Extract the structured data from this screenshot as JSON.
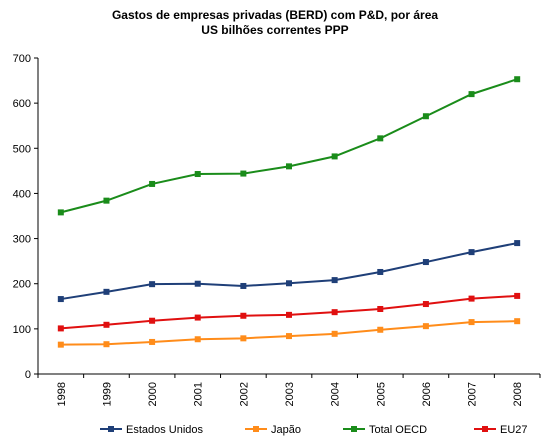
{
  "chart_data": {
    "type": "line",
    "title": "Gastos de empresas privadas (BERD) com P&D, por área",
    "subtitle": "US bilhões correntes PPP",
    "categories": [
      "1998",
      "1999",
      "2000",
      "2001",
      "2002",
      "2003",
      "2004",
      "2005",
      "2006",
      "2007",
      "2008"
    ],
    "ylim": [
      0,
      700
    ],
    "yticks": [
      0,
      100,
      200,
      300,
      400,
      500,
      600,
      700
    ],
    "grid": false,
    "legend_position": "bottom",
    "series": [
      {
        "name": "Estados Unidos",
        "color": "#1f3f78",
        "values": [
          166,
          182,
          199,
          200,
          195,
          201,
          208,
          226,
          248,
          270,
          290
        ]
      },
      {
        "name": "Japão",
        "color": "#ff8c1a",
        "values": [
          65,
          66,
          71,
          77,
          79,
          84,
          89,
          98,
          106,
          115,
          117
        ]
      },
      {
        "name": "Total OECD",
        "color": "#1a8c1a",
        "values": [
          358,
          384,
          421,
          443,
          444,
          460,
          482,
          522,
          571,
          620,
          653
        ]
      },
      {
        "name": "EU27",
        "color": "#e01010",
        "values": [
          101,
          109,
          118,
          125,
          129,
          131,
          137,
          144,
          155,
          167,
          173
        ]
      }
    ]
  }
}
